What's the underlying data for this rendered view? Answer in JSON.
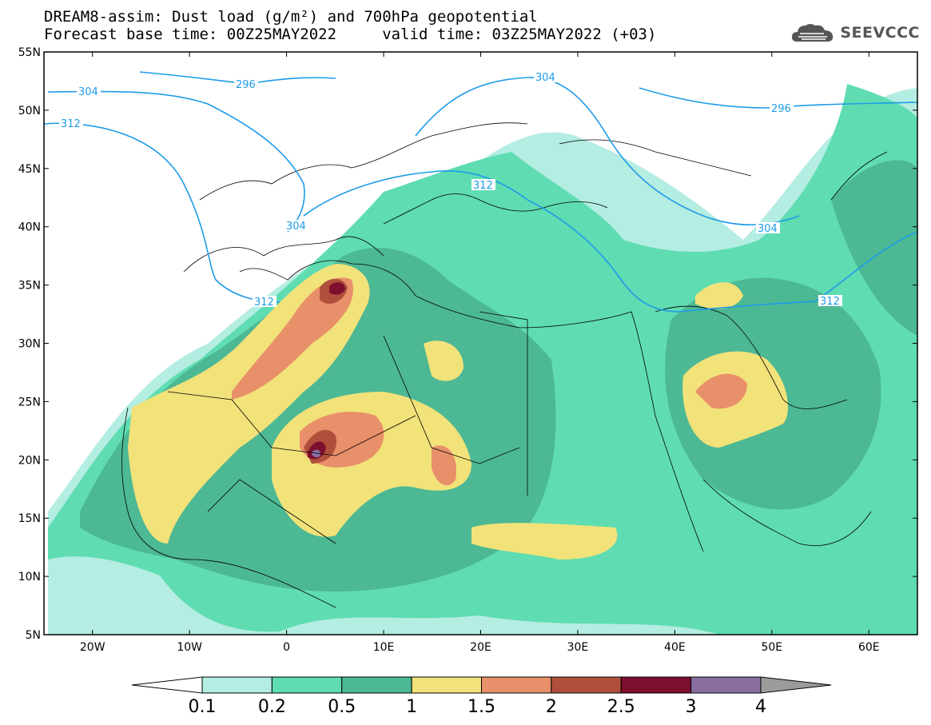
{
  "header": {
    "title_line1": "DREAM8-assim: Dust load (g/m²) and 700hPa geopotential",
    "title_line2": "Forecast base time: 00Z25MAY2022     valid time: 03Z25MAY2022 (+03)",
    "logo_text": "SEEVCCC"
  },
  "map": {
    "lon_range": [
      -25,
      65
    ],
    "lat_range": [
      5,
      55
    ],
    "lat_ticks": [
      "55N",
      "50N",
      "45N",
      "40N",
      "35N",
      "30N",
      "25N",
      "20N",
      "15N",
      "10N",
      "5N"
    ],
    "lon_ticks": [
      "20W",
      "10W",
      "0",
      "10E",
      "20E",
      "30E",
      "40E",
      "50E",
      "60E"
    ],
    "contour_color": "#1e9be8",
    "contour_labels": [
      "304",
      "296",
      "312",
      "304",
      "296",
      "312",
      "304",
      "312",
      "304",
      "312",
      "312"
    ]
  },
  "colorbar": {
    "colors": [
      "#ffffff",
      "#b4ede2",
      "#5fdcb2",
      "#4db894",
      "#f2e27a",
      "#e8906a",
      "#b0503c",
      "#7d0e2e",
      "#8a6ea0",
      "#9b9b9b"
    ],
    "labels": [
      "0.1",
      "0.2",
      "0.5",
      "1",
      "1.5",
      "2",
      "2.5",
      "3",
      "4"
    ]
  }
}
